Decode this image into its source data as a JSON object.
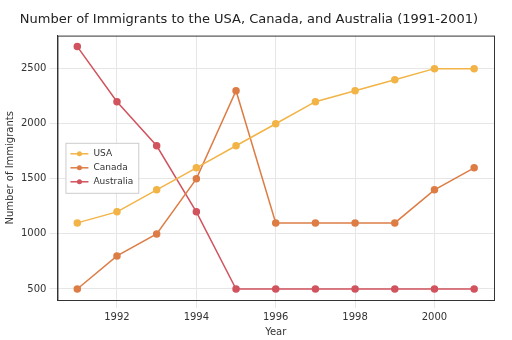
{
  "chart_data": {
    "type": "line",
    "title": "Number of Immigrants to the USA, Canada, and Australia (1991-2001)",
    "xlabel": "Year",
    "ylabel": "Number of Immigrants",
    "x": [
      1991,
      1992,
      1993,
      1994,
      1995,
      1996,
      1997,
      1998,
      1999,
      2000,
      2001
    ],
    "series": [
      {
        "name": "USA",
        "color": "#f2b447",
        "marker": "o",
        "line_style": "solid",
        "values": [
          1100,
          1200,
          1400,
          1600,
          1800,
          2000,
          2200,
          2300,
          2400,
          2500,
          2500
        ]
      },
      {
        "name": "Canada",
        "color": "#dd7d45",
        "marker": "o",
        "line_style": "solid",
        "values": [
          500,
          800,
          1000,
          1500,
          2300,
          1100,
          1100,
          1100,
          1100,
          1400,
          1600
        ]
      },
      {
        "name": "Australia",
        "color": "#d1535e",
        "marker": "o",
        "line_style": "solid",
        "values": [
          2700,
          2200,
          1800,
          1200,
          500,
          500,
          500,
          500,
          500,
          500,
          500
        ]
      }
    ],
    "xlim": [
      1990.5,
      2001.5
    ],
    "xticks": [
      1992,
      1994,
      1996,
      1998,
      2000
    ],
    "ylim": [
      400,
      2800
    ],
    "yticks": [
      500,
      1000,
      1500,
      2000,
      2500
    ],
    "grid": true,
    "legend": "left"
  }
}
